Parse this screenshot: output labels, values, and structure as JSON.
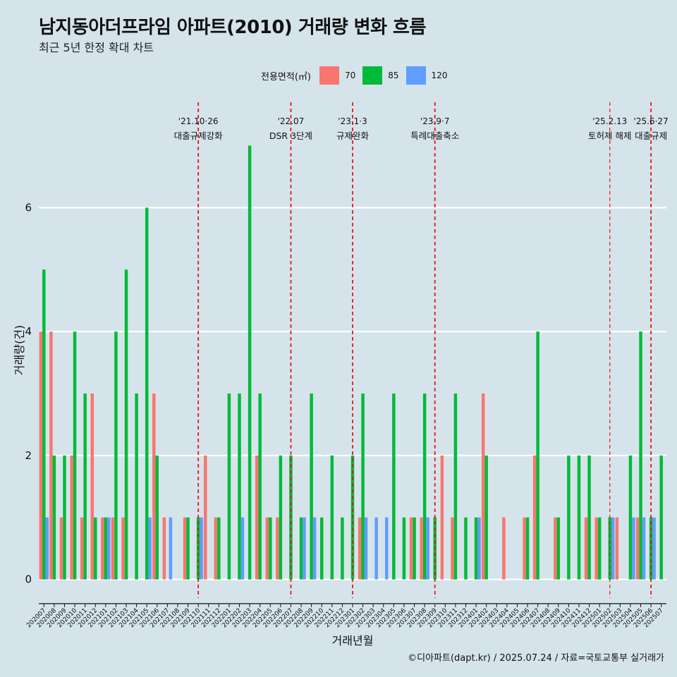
{
  "title": "남지동아더프라임 아파트(2010) 거래량 변화 흐름",
  "subtitle": "최근 5년 한정 확대 차트",
  "caption": "©디아파트(dapt.kr) / 2025.07.24 / 자료=국토교통부 실거래가",
  "legend": {
    "title": "전용면적(㎡)",
    "items": [
      {
        "label": "70",
        "color": "#f8766d"
      },
      {
        "label": "85",
        "color": "#00ba38"
      },
      {
        "label": "120",
        "color": "#619cff"
      }
    ]
  },
  "chart_data": {
    "type": "bar",
    "xlabel": "거래년월",
    "ylabel": "거래량(건)",
    "ylim": [
      -0.3,
      7.7
    ],
    "yticks": [
      0,
      2,
      4,
      6
    ],
    "grid": true,
    "legend_position": "top",
    "categories": [
      "202007",
      "202008",
      "202009",
      "202010",
      "202011",
      "202012",
      "202101",
      "202102",
      "202103",
      "202104",
      "202105",
      "202106",
      "202107",
      "202108",
      "202109",
      "202110",
      "202111",
      "202112",
      "202201",
      "202202",
      "202203",
      "202204",
      "202205",
      "202206",
      "202207",
      "202208",
      "202209",
      "202210",
      "202211",
      "202212",
      "202301",
      "202302",
      "202303",
      "202304",
      "202305",
      "202306",
      "202307",
      "202308",
      "202309",
      "202310",
      "202311",
      "202312",
      "202401",
      "202402",
      "202403",
      "202404",
      "202405",
      "202406",
      "202407",
      "202408",
      "202409",
      "202410",
      "202411",
      "202412",
      "202501",
      "202502",
      "202503",
      "202504",
      "202505",
      "202506",
      "202507"
    ],
    "series": [
      {
        "name": "70",
        "color": "#f8766d",
        "values": [
          4,
          4,
          1,
          2,
          1,
          3,
          1,
          1,
          1,
          0,
          0,
          3,
          1,
          0,
          1,
          0,
          2,
          1,
          0,
          0,
          0,
          2,
          1,
          1,
          0,
          0,
          0,
          0,
          0,
          0,
          0,
          1,
          0,
          0,
          0,
          0,
          1,
          1,
          0,
          2,
          1,
          0,
          0,
          3,
          0,
          1,
          0,
          1,
          2,
          0,
          1,
          0,
          0,
          1,
          1,
          0,
          1,
          0,
          1,
          0,
          0
        ]
      },
      {
        "name": "85",
        "color": "#00ba38",
        "values": [
          5,
          2,
          2,
          4,
          3,
          1,
          1,
          4,
          5,
          3,
          6,
          2,
          0,
          0,
          1,
          1,
          0,
          1,
          3,
          3,
          7,
          3,
          1,
          2,
          2,
          1,
          3,
          1,
          2,
          1,
          2,
          3,
          0,
          0,
          3,
          1,
          1,
          3,
          1,
          0,
          3,
          1,
          1,
          2,
          0,
          0,
          0,
          1,
          4,
          0,
          1,
          2,
          2,
          2,
          1,
          1,
          0,
          2,
          4,
          1,
          2
        ]
      },
      {
        "name": "120",
        "color": "#619cff",
        "values": [
          1,
          0,
          0,
          0,
          0,
          0,
          1,
          0,
          0,
          0,
          1,
          0,
          1,
          0,
          0,
          1,
          0,
          0,
          0,
          1,
          0,
          0,
          0,
          0,
          0,
          1,
          1,
          0,
          0,
          0,
          0,
          1,
          1,
          1,
          0,
          0,
          0,
          1,
          0,
          0,
          0,
          0,
          1,
          0,
          0,
          0,
          0,
          0,
          0,
          0,
          0,
          0,
          0,
          0,
          0,
          1,
          0,
          1,
          1,
          1,
          0
        ]
      }
    ],
    "annotations": [
      {
        "x": "202110",
        "date": "'21.10·26",
        "text": "대출규제강화",
        "style": "dashed"
      },
      {
        "x": "202207",
        "date": "'22.07",
        "text": "DSR 3단계",
        "style": "dashed"
      },
      {
        "x": "202301",
        "date": "'23.1·3",
        "text": "규제완화",
        "style": "dashed"
      },
      {
        "x": "202309",
        "date": "'23.9·7",
        "text": "특례대출축소",
        "style": "dashed"
      },
      {
        "x": "202502",
        "date": "'25.2.13",
        "text": "토허제 해제",
        "style": "thin"
      },
      {
        "x": "202506",
        "date": "'25.6·27",
        "text": "대출규제",
        "style": "dashed"
      }
    ]
  }
}
